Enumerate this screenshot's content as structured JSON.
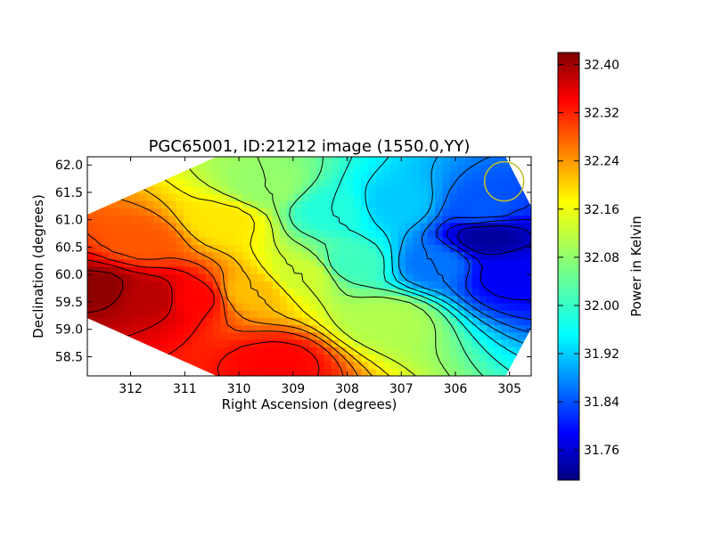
{
  "chart_data": {
    "type": "heatmap",
    "title": "PGC65001, ID:21212 image (1550.0,YY)",
    "xlabel": "Right Ascension (degrees)",
    "ylabel": "Declination (degrees)",
    "xlim": [
      312.8,
      304.6
    ],
    "ylim": [
      58.15,
      62.15
    ],
    "x_ticks": [
      "312",
      "311",
      "310",
      "309",
      "308",
      "307",
      "306",
      "305"
    ],
    "x_tick_values": [
      312,
      311,
      310,
      309,
      308,
      307,
      306,
      305
    ],
    "y_ticks": [
      "58.5",
      "59.0",
      "59.5",
      "60.0",
      "60.5",
      "61.0",
      "61.5",
      "62.0"
    ],
    "y_tick_values": [
      58.5,
      59.0,
      59.5,
      60.0,
      60.5,
      61.0,
      61.5,
      62.0
    ],
    "colorbar": {
      "label": "Power in Kelvin",
      "range": [
        31.71,
        32.42
      ],
      "ticks": [
        "31.76",
        "31.84",
        "31.92",
        "32.00",
        "32.08",
        "32.16",
        "32.24",
        "32.32",
        "32.40"
      ],
      "tick_values": [
        31.76,
        31.84,
        31.92,
        32.0,
        32.08,
        32.16,
        32.24,
        32.32,
        32.4
      ],
      "colormap": "jet"
    },
    "field_samples": [
      {
        "ra": 312.6,
        "dec": 59.75,
        "value": 32.41
      },
      {
        "ra": 311.6,
        "dec": 59.6,
        "value": 32.38
      },
      {
        "ra": 310.8,
        "dec": 59.6,
        "value": 32.33
      },
      {
        "ra": 311.8,
        "dec": 60.6,
        "value": 32.27
      },
      {
        "ra": 310.3,
        "dec": 61.0,
        "value": 32.17
      },
      {
        "ra": 309.8,
        "dec": 59.7,
        "value": 32.2
      },
      {
        "ra": 309.3,
        "dec": 58.4,
        "value": 32.33
      },
      {
        "ra": 308.8,
        "dec": 60.0,
        "value": 32.12
      },
      {
        "ra": 309.5,
        "dec": 61.6,
        "value": 32.08
      },
      {
        "ra": 308.3,
        "dec": 61.2,
        "value": 32.0
      },
      {
        "ra": 307.9,
        "dec": 60.2,
        "value": 32.02
      },
      {
        "ra": 307.3,
        "dec": 59.2,
        "value": 32.1
      },
      {
        "ra": 307.1,
        "dec": 61.3,
        "value": 31.94
      },
      {
        "ra": 306.4,
        "dec": 60.2,
        "value": 31.88
      },
      {
        "ra": 305.4,
        "dec": 60.7,
        "value": 31.73
      },
      {
        "ra": 305.0,
        "dec": 60.0,
        "value": 31.79
      },
      {
        "ra": 305.5,
        "dec": 61.2,
        "value": 31.86
      }
    ],
    "contour_interval": 0.04,
    "beam_marker": {
      "ra": 305.1,
      "dec": 61.7,
      "color": "#bfbf2f"
    }
  }
}
